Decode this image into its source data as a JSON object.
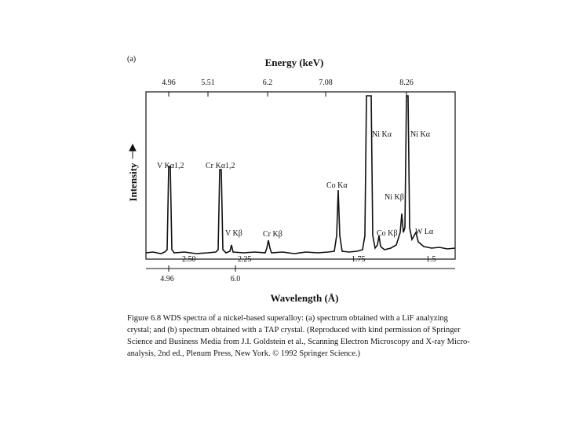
{
  "figure": {
    "panel_label": "(a)",
    "top_axis_title": "Energy (keV)",
    "top_ticks": [
      "4.96",
      "5.51",
      "6.2",
      "7.08",
      "8.26"
    ],
    "y_axis_title": "Intensity",
    "inner_bottom_ticks": [
      "2.50",
      "2.25",
      "1.75",
      "1.5"
    ],
    "bottom_ticks": [
      "4.96",
      "6.0"
    ],
    "bottom_axis_title": "Wavelength (Å)",
    "peaks": [
      "V Kα1,2",
      "Cr Kα1,2",
      "V Kβ",
      "Cr Kβ",
      "Co Kα",
      "Ni Kα",
      "Ni Kα",
      "Ni Kβ",
      "Co Kβ",
      "W Lα"
    ]
  },
  "caption": {
    "lines": [
      "Figure 6.8   WDS spectra of a nickel-based superalloy: (a) spectrum obtained with a LiF analyzing",
      "crystal; and (b) spectrum obtained with a TAP crystal.  (Reproduced with kind permission of Springer",
      "Science and Business Media from J.I. Goldstein et al., Scanning Electron Microscopy and X-ray Micro-",
      "analysis, 2nd ed., Plenum Press, New York. © 1992 Springer Science.)"
    ]
  }
}
